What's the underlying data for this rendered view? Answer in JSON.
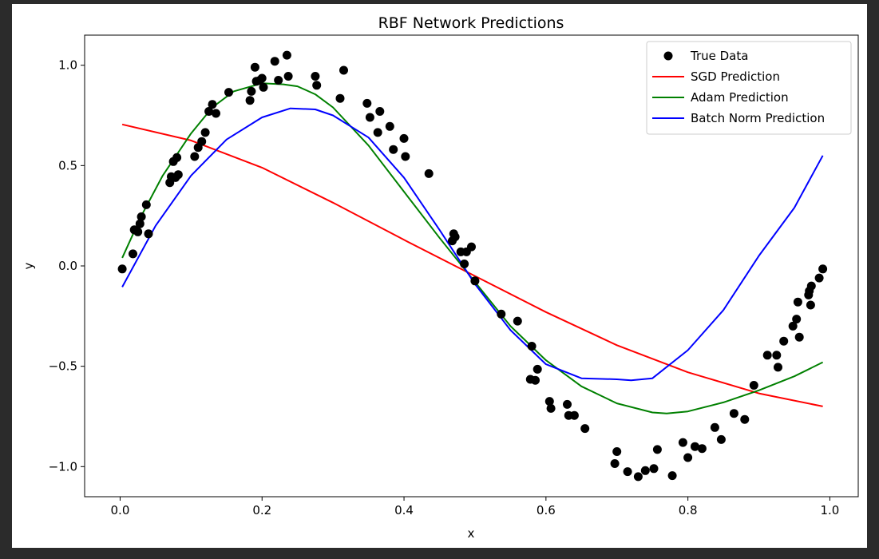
{
  "chart_data": {
    "type": "scatter",
    "title": "RBF Network Predictions",
    "xlabel": "x",
    "ylabel": "y",
    "xlim": [
      -0.05,
      1.04
    ],
    "ylim": [
      -1.15,
      1.15
    ],
    "x_ticks": [
      0.0,
      0.2,
      0.4,
      0.6,
      0.8,
      1.0
    ],
    "x_tick_labels": [
      "0.0",
      "0.2",
      "0.4",
      "0.6",
      "0.8",
      "1.0"
    ],
    "y_ticks": [
      -1.0,
      -0.5,
      0.0,
      0.5,
      1.0
    ],
    "y_tick_labels": [
      "−1.0",
      "−0.5",
      "0.0",
      "0.5",
      "1.0"
    ],
    "grid": false,
    "legend_position": "top-right",
    "legend": [
      "True Data",
      "SGD Prediction",
      "Adam Prediction",
      "Batch Norm Prediction"
    ],
    "scatter": {
      "name": "True Data",
      "color": "#000000",
      "points": [
        [
          0.003,
          -0.015
        ],
        [
          0.018,
          0.06
        ],
        [
          0.02,
          0.18
        ],
        [
          0.025,
          0.17
        ],
        [
          0.028,
          0.21
        ],
        [
          0.03,
          0.245
        ],
        [
          0.037,
          0.305
        ],
        [
          0.04,
          0.16
        ],
        [
          0.07,
          0.415
        ],
        [
          0.072,
          0.445
        ],
        [
          0.075,
          0.52
        ],
        [
          0.078,
          0.44
        ],
        [
          0.08,
          0.54
        ],
        [
          0.082,
          0.455
        ],
        [
          0.105,
          0.545
        ],
        [
          0.11,
          0.59
        ],
        [
          0.115,
          0.62
        ],
        [
          0.12,
          0.665
        ],
        [
          0.125,
          0.77
        ],
        [
          0.13,
          0.805
        ],
        [
          0.135,
          0.76
        ],
        [
          0.153,
          0.865
        ],
        [
          0.183,
          0.825
        ],
        [
          0.185,
          0.87
        ],
        [
          0.19,
          0.99
        ],
        [
          0.192,
          0.92
        ],
        [
          0.197,
          0.925
        ],
        [
          0.2,
          0.935
        ],
        [
          0.202,
          0.89
        ],
        [
          0.218,
          1.02
        ],
        [
          0.223,
          0.925
        ],
        [
          0.235,
          1.05
        ],
        [
          0.237,
          0.945
        ],
        [
          0.275,
          0.945
        ],
        [
          0.277,
          0.9
        ],
        [
          0.31,
          0.835
        ],
        [
          0.315,
          0.975
        ],
        [
          0.348,
          0.81
        ],
        [
          0.352,
          0.74
        ],
        [
          0.363,
          0.665
        ],
        [
          0.366,
          0.77
        ],
        [
          0.38,
          0.695
        ],
        [
          0.385,
          0.58
        ],
        [
          0.4,
          0.635
        ],
        [
          0.402,
          0.545
        ],
        [
          0.435,
          0.46
        ],
        [
          0.468,
          0.125
        ],
        [
          0.47,
          0.16
        ],
        [
          0.472,
          0.145
        ],
        [
          0.48,
          0.07
        ],
        [
          0.485,
          0.01
        ],
        [
          0.488,
          0.07
        ],
        [
          0.495,
          0.095
        ],
        [
          0.5,
          -0.075
        ],
        [
          0.537,
          -0.24
        ],
        [
          0.56,
          -0.275
        ],
        [
          0.578,
          -0.565
        ],
        [
          0.58,
          -0.4
        ],
        [
          0.585,
          -0.57
        ],
        [
          0.588,
          -0.515
        ],
        [
          0.605,
          -0.675
        ],
        [
          0.607,
          -0.71
        ],
        [
          0.63,
          -0.69
        ],
        [
          0.632,
          -0.745
        ],
        [
          0.64,
          -0.745
        ],
        [
          0.655,
          -0.81
        ],
        [
          0.697,
          -0.985
        ],
        [
          0.7,
          -0.925
        ],
        [
          0.715,
          -1.025
        ],
        [
          0.73,
          -1.05
        ],
        [
          0.74,
          -1.02
        ],
        [
          0.752,
          -1.01
        ],
        [
          0.757,
          -0.915
        ],
        [
          0.778,
          -1.045
        ],
        [
          0.793,
          -0.88
        ],
        [
          0.8,
          -0.955
        ],
        [
          0.81,
          -0.9
        ],
        [
          0.82,
          -0.91
        ],
        [
          0.838,
          -0.805
        ],
        [
          0.847,
          -0.865
        ],
        [
          0.865,
          -0.735
        ],
        [
          0.88,
          -0.765
        ],
        [
          0.893,
          -0.595
        ],
        [
          0.912,
          -0.445
        ],
        [
          0.925,
          -0.445
        ],
        [
          0.927,
          -0.505
        ],
        [
          0.935,
          -0.375
        ],
        [
          0.948,
          -0.3
        ],
        [
          0.953,
          -0.265
        ],
        [
          0.955,
          -0.18
        ],
        [
          0.957,
          -0.355
        ],
        [
          0.97,
          -0.145
        ],
        [
          0.971,
          -0.125
        ],
        [
          0.973,
          -0.195
        ],
        [
          0.974,
          -0.1
        ],
        [
          0.985,
          -0.06
        ],
        [
          0.99,
          -0.015
        ]
      ]
    },
    "series": [
      {
        "name": "SGD Prediction",
        "color": "#ff0000",
        "x": [
          0.003,
          0.1,
          0.2,
          0.3,
          0.4,
          0.5,
          0.6,
          0.7,
          0.8,
          0.9,
          0.99
        ],
        "y": [
          0.705,
          0.625,
          0.49,
          0.315,
          0.13,
          -0.05,
          -0.23,
          -0.395,
          -0.53,
          -0.635,
          -0.7
        ]
      },
      {
        "name": "Adam Prediction",
        "color": "#008000",
        "x": [
          0.003,
          0.03,
          0.06,
          0.1,
          0.13,
          0.16,
          0.2,
          0.23,
          0.25,
          0.275,
          0.3,
          0.35,
          0.4,
          0.45,
          0.5,
          0.55,
          0.6,
          0.65,
          0.7,
          0.75,
          0.77,
          0.8,
          0.85,
          0.9,
          0.95,
          0.99
        ],
        "y": [
          0.04,
          0.25,
          0.45,
          0.66,
          0.79,
          0.87,
          0.91,
          0.905,
          0.895,
          0.855,
          0.79,
          0.6,
          0.37,
          0.14,
          -0.08,
          -0.3,
          -0.47,
          -0.6,
          -0.685,
          -0.73,
          -0.735,
          -0.725,
          -0.68,
          -0.62,
          -0.55,
          -0.48
        ]
      },
      {
        "name": "Batch Norm Prediction",
        "color": "#0000ff",
        "x": [
          0.003,
          0.05,
          0.1,
          0.15,
          0.2,
          0.24,
          0.275,
          0.3,
          0.35,
          0.4,
          0.45,
          0.5,
          0.55,
          0.6,
          0.65,
          0.7,
          0.72,
          0.75,
          0.8,
          0.85,
          0.9,
          0.95,
          0.99
        ],
        "y": [
          -0.105,
          0.2,
          0.45,
          0.63,
          0.74,
          0.785,
          0.78,
          0.75,
          0.64,
          0.44,
          0.18,
          -0.09,
          -0.32,
          -0.49,
          -0.56,
          -0.565,
          -0.57,
          -0.56,
          -0.42,
          -0.22,
          0.05,
          0.29,
          0.55
        ]
      }
    ]
  }
}
